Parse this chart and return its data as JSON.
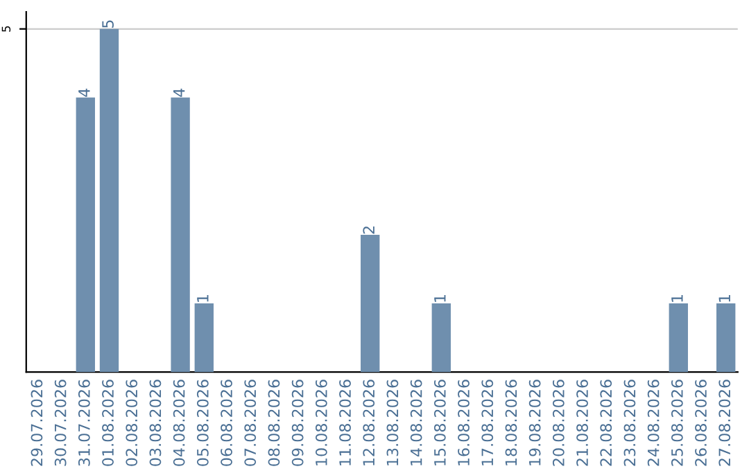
{
  "chart_data": {
    "type": "bar",
    "categories": [
      "29.07.2026",
      "30.07.2026",
      "31.07.2026",
      "01.08.2026",
      "02.08.2026",
      "03.08.2026",
      "04.08.2026",
      "05.08.2026",
      "06.08.2026",
      "07.08.2026",
      "08.08.2026",
      "09.08.2026",
      "10.08.2026",
      "11.08.2026",
      "12.08.2026",
      "13.08.2026",
      "14.08.2026",
      "15.08.2026",
      "16.08.2026",
      "17.08.2026",
      "18.08.2026",
      "19.08.2026",
      "20.08.2026",
      "21.08.2026",
      "22.08.2026",
      "23.08.2026",
      "24.08.2026",
      "25.08.2026",
      "26.08.2026",
      "27.08.2026"
    ],
    "values": [
      0,
      0,
      4,
      5,
      0,
      0,
      4,
      1,
      0,
      0,
      0,
      0,
      0,
      0,
      2,
      0,
      0,
      1,
      0,
      0,
      0,
      0,
      0,
      0,
      0,
      0,
      0,
      1,
      0,
      1
    ],
    "value_labels": [
      null,
      null,
      "4",
      "5",
      null,
      null,
      "4",
      "1",
      null,
      null,
      null,
      null,
      null,
      null,
      "2",
      null,
      null,
      "1",
      null,
      null,
      null,
      null,
      null,
      null,
      null,
      null,
      null,
      "1",
      null,
      "1"
    ],
    "color": "#6f8fae",
    "ylim": [
      0,
      5.25
    ],
    "yticks": [
      5
    ],
    "grid": "y"
  }
}
